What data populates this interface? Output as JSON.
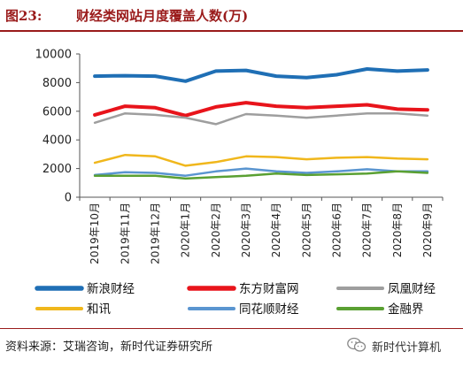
{
  "figure": {
    "number": "图23:",
    "title": "财经类网站月度覆盖人数(万)",
    "source": "资料来源：艾瑞咨询，新时代证券研究所",
    "watermark": "新时代计算机"
  },
  "chart_data": {
    "type": "line",
    "title": "财经类网站月度覆盖人数(万)",
    "xlabel": "",
    "ylabel": "",
    "ylim": [
      0,
      10000
    ],
    "yticks": [
      0,
      2000,
      4000,
      6000,
      8000,
      10000
    ],
    "grid": false,
    "legend_position": "bottom",
    "categories": [
      "2019年10月",
      "2019年11月",
      "2019年12月",
      "2020年1月",
      "2020年2月",
      "2020年3月",
      "2020年4月",
      "2020年5月",
      "2020年6月",
      "2020年7月",
      "2020年8月",
      "2020年9月"
    ],
    "series": [
      {
        "name": "新浪财经",
        "color": "#1f6fb5",
        "width": 4,
        "values": [
          8450,
          8480,
          8450,
          8100,
          8800,
          8850,
          8450,
          8350,
          8550,
          8950,
          8800,
          8880
        ]
      },
      {
        "name": "东方财富网",
        "color": "#e8141b",
        "width": 4,
        "values": [
          5750,
          6350,
          6250,
          5700,
          6300,
          6600,
          6350,
          6250,
          6350,
          6450,
          6150,
          6100
        ]
      },
      {
        "name": "凤凰财经",
        "color": "#9e9e9e",
        "width": 2.5,
        "values": [
          5200,
          5850,
          5750,
          5550,
          5100,
          5800,
          5700,
          5550,
          5700,
          5850,
          5850,
          5700
        ]
      },
      {
        "name": "和讯",
        "color": "#f0b71c",
        "width": 2.5,
        "values": [
          2400,
          2950,
          2850,
          2200,
          2450,
          2850,
          2800,
          2650,
          2750,
          2800,
          2700,
          2650
        ]
      },
      {
        "name": "同花顺财经",
        "color": "#5a95d0",
        "width": 2.5,
        "values": [
          1550,
          1750,
          1700,
          1500,
          1800,
          2000,
          1800,
          1700,
          1800,
          1950,
          1800,
          1800
        ]
      },
      {
        "name": "金融界",
        "color": "#5aa032",
        "width": 2.5,
        "values": [
          1500,
          1500,
          1500,
          1300,
          1400,
          1500,
          1650,
          1550,
          1600,
          1650,
          1800,
          1700
        ]
      }
    ]
  }
}
